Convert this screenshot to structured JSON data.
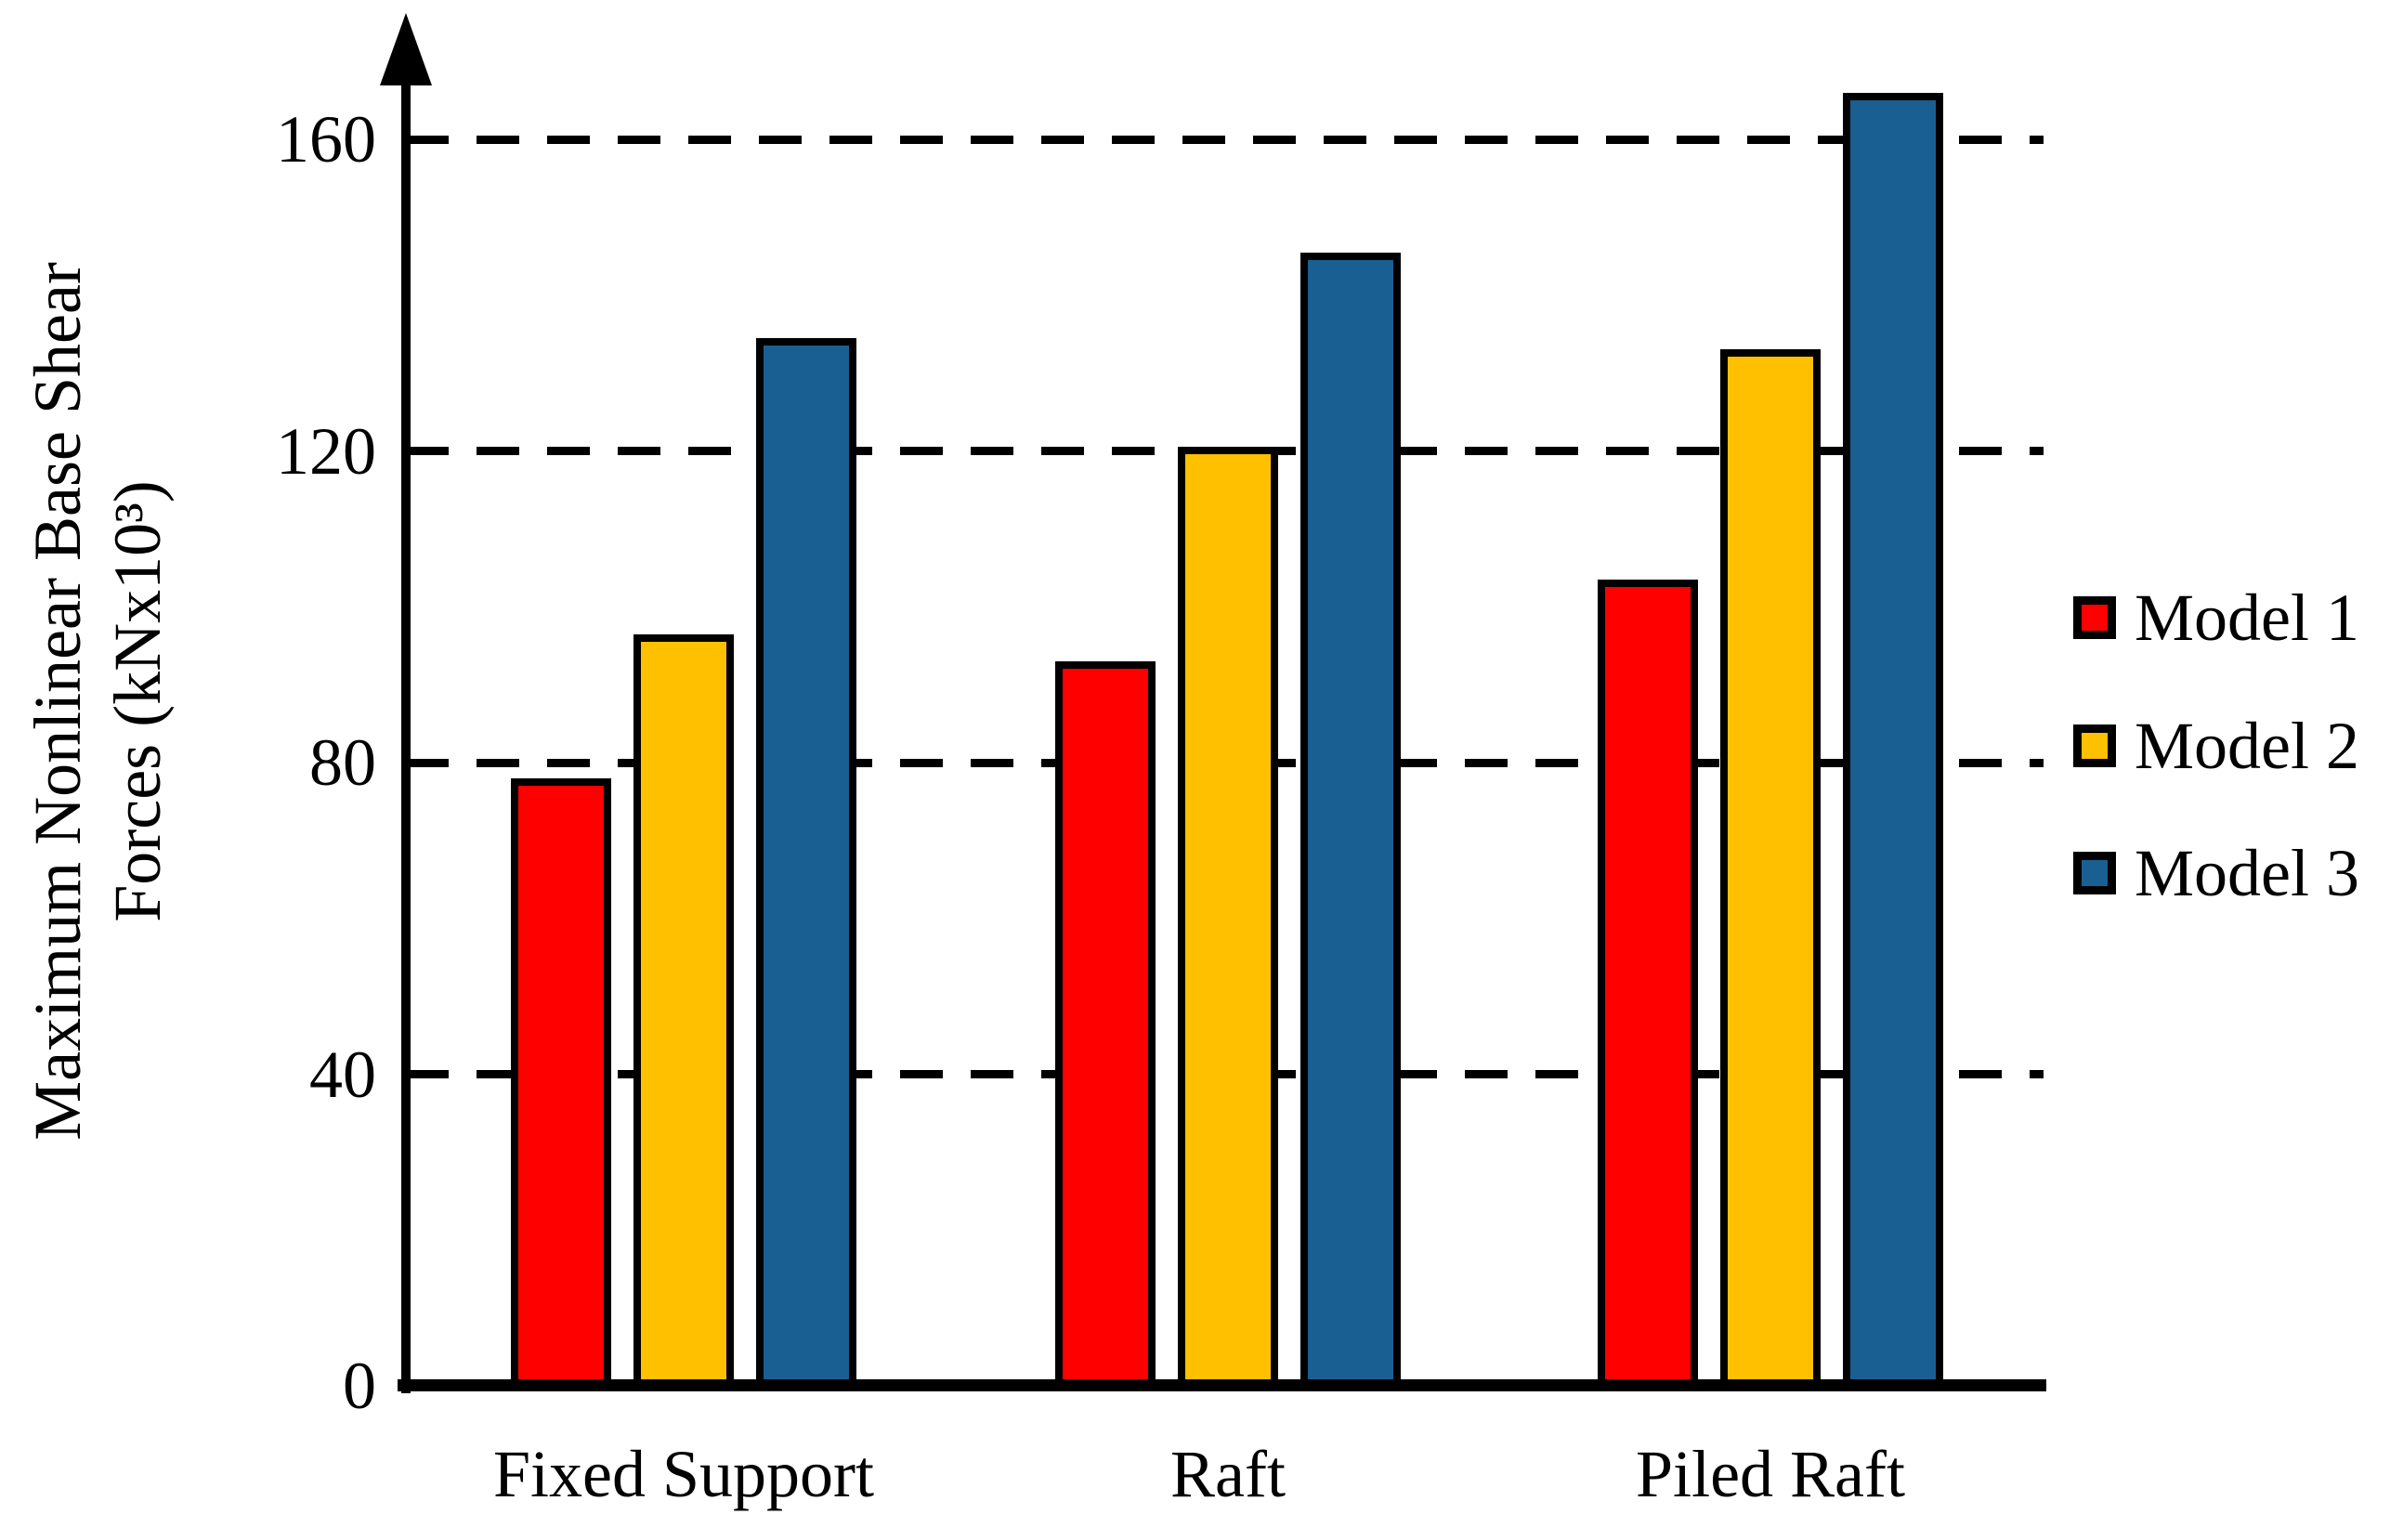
{
  "chart_data": {
    "type": "bar",
    "title": "",
    "ylabel_line1": "Maximum Nonlinear Base Shear",
    "ylabel_line2": "Forces (kNx10³)",
    "categories": [
      "Fixed Support",
      "Raft",
      "Piled Raft"
    ],
    "series": [
      {
        "name": "Model 1",
        "color": "#fe0000",
        "values": [
          78,
          93,
          103.5
        ]
      },
      {
        "name": "Model 2",
        "color": "#ffc000",
        "values": [
          96.5,
          120.5,
          133
        ]
      },
      {
        "name": "Model 3",
        "color": "#1a5f92",
        "values": [
          134.5,
          145.5,
          166
        ]
      }
    ],
    "yticks": [
      0,
      40,
      80,
      120,
      160
    ],
    "ylim": [
      0,
      175
    ],
    "grid": "horizontal-dashed",
    "legend_position": "right",
    "axis_color": "#000000",
    "background_color": "#ffffff"
  }
}
